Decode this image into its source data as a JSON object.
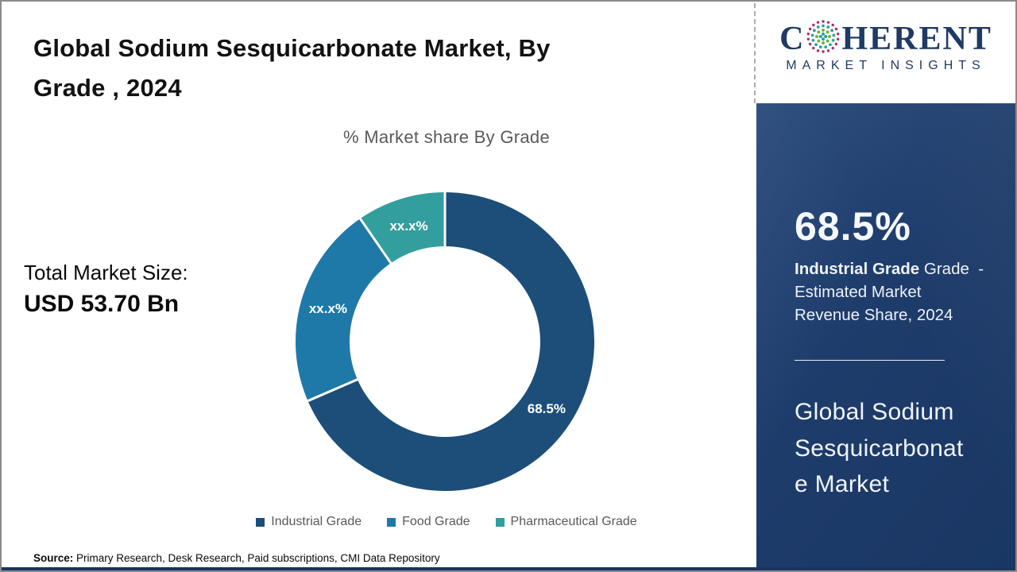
{
  "header": {
    "title_line1": "Global Sodium Sesquicarbonate Market, By",
    "title_line2": "Grade , 2024"
  },
  "logo": {
    "word_start": "C",
    "word_end": "HERENT",
    "subtitle": "MARKET INSIGHTS",
    "brand_color": "#203a66",
    "globe_colors": {
      "outer": "#b12d62",
      "mid": "#2f9e9e",
      "inner": "#6fb43f"
    }
  },
  "chart": {
    "subtitle": "% Market share By Grade"
  },
  "chart_data": {
    "type": "pie",
    "donut": true,
    "title": "% Market share By Grade",
    "categories": [
      "Industrial Grade",
      "Food Grade",
      "Pharmaceutical Grade"
    ],
    "values": [
      68.5,
      21.9,
      9.6
    ],
    "labels": [
      "68.5%",
      "xx.x%",
      "xx.x%"
    ],
    "colors": [
      "#1c4e79",
      "#1f79a8",
      "#339e9e"
    ],
    "start_angle_deg": 0,
    "direction": "clockwise",
    "legend_position": "bottom",
    "values_note": "Only the 68.5% slice is labeled; other slice values are masked as xx.x% and estimated from arc angles"
  },
  "totals": {
    "label": "Total Market Size:",
    "value": "USD 53.70 Bn"
  },
  "panel": {
    "stat_value": "68.5%",
    "desc_bold": "Industrial Grade",
    "desc_line1_rest": " Grade  -",
    "desc_line2": "Estimated Market",
    "desc_line3": "Revenue Share, 2024",
    "market_name_line1": "Global Sodium",
    "market_name_line2": "Sesquicarbonat",
    "market_name_line3": "e Market",
    "bg_color": "#1e3c6b"
  },
  "footer": {
    "source_label": "Source:",
    "source_text": " Primary Research, Desk Research, Paid subscriptions, CMI Data Repository"
  }
}
